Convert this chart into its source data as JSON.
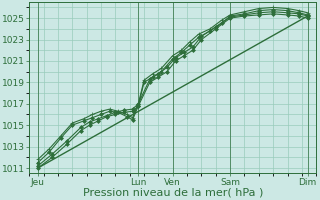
{
  "background_color": "#cce8e4",
  "grid_color": "#99ccbb",
  "line_color": "#2d6e3a",
  "marker_color": "#2d6e3a",
  "xlabel": "Pression niveau de la mer( hPa )",
  "xlabel_fontsize": 8,
  "tick_fontsize": 6.5,
  "ylim": [
    1010.5,
    1026.5
  ],
  "yticks": [
    1011,
    1013,
    1015,
    1017,
    1019,
    1021,
    1023,
    1025
  ],
  "xlim": [
    0,
    10
  ],
  "xtick_labels": [
    "Jeu",
    "Lun",
    "Ven",
    "Sam",
    "Dim"
  ],
  "xtick_positions": [
    0.3,
    3.8,
    5.0,
    7.0,
    9.7
  ],
  "vline_positions": [
    0.3,
    3.8,
    5.0,
    7.0,
    9.7
  ],
  "series": [
    {
      "x": [
        0.3,
        9.7
      ],
      "y": [
        1011.0,
        1025.2
      ],
      "marker": null,
      "markersize": 0,
      "linewidth": 1.0
    },
    {
      "x": [
        0.3,
        0.8,
        1.3,
        1.8,
        2.1,
        2.4,
        2.7,
        3.0,
        3.3,
        3.6,
        3.8,
        4.2,
        4.5,
        4.8,
        5.1,
        5.4,
        5.7,
        6.0,
        6.5,
        7.0,
        7.5,
        8.0,
        8.5,
        9.0,
        9.4,
        9.7
      ],
      "y": [
        1011.0,
        1012.0,
        1013.2,
        1014.5,
        1015.0,
        1015.4,
        1015.8,
        1016.0,
        1016.2,
        1016.3,
        1016.8,
        1019.0,
        1019.5,
        1020.0,
        1021.0,
        1021.5,
        1022.0,
        1023.0,
        1024.0,
        1025.0,
        1025.2,
        1025.3,
        1025.4,
        1025.3,
        1025.2,
        1025.0
      ],
      "marker": "D",
      "markersize": 2.0,
      "linewidth": 0.8
    },
    {
      "x": [
        0.3,
        0.8,
        1.3,
        1.8,
        2.1,
        2.4,
        2.7,
        3.0,
        3.3,
        3.6,
        3.8,
        4.2,
        4.5,
        4.8,
        5.1,
        5.4,
        5.7,
        6.0,
        6.5,
        7.0,
        7.5,
        8.0,
        8.5,
        9.0,
        9.4,
        9.7
      ],
      "y": [
        1011.2,
        1012.3,
        1013.5,
        1014.8,
        1015.3,
        1015.6,
        1015.9,
        1016.2,
        1016.4,
        1016.5,
        1017.0,
        1019.3,
        1019.8,
        1020.4,
        1021.3,
        1021.8,
        1022.3,
        1023.3,
        1024.2,
        1025.1,
        1025.3,
        1025.5,
        1025.6,
        1025.5,
        1025.4,
        1025.2
      ],
      "marker": "D",
      "markersize": 2.0,
      "linewidth": 0.8
    },
    {
      "x": [
        0.3,
        0.7,
        1.1,
        1.5,
        1.9,
        2.2,
        2.5,
        2.8,
        3.1,
        3.4,
        3.6,
        3.8,
        4.0,
        4.3,
        4.6,
        5.0,
        5.3,
        5.6,
        5.9,
        6.3,
        6.7,
        7.0,
        7.5,
        8.0,
        8.5,
        9.0,
        9.4,
        9.7
      ],
      "y": [
        1011.5,
        1012.5,
        1013.8,
        1015.0,
        1015.4,
        1015.7,
        1016.0,
        1016.3,
        1016.2,
        1015.8,
        1015.5,
        1016.8,
        1019.0,
        1019.5,
        1020.0,
        1021.2,
        1021.8,
        1022.5,
        1023.2,
        1023.8,
        1024.5,
        1025.2,
        1025.4,
        1025.7,
        1025.8,
        1025.7,
        1025.5,
        1025.3
      ],
      "marker": "D",
      "markersize": 2.0,
      "linewidth": 0.8
    },
    {
      "x": [
        0.3,
        0.7,
        1.1,
        1.5,
        1.9,
        2.2,
        2.5,
        2.8,
        3.1,
        3.4,
        3.6,
        3.8,
        4.0,
        4.3,
        4.6,
        5.0,
        5.3,
        5.6,
        5.9,
        6.3,
        6.7,
        7.0,
        7.5,
        8.0,
        8.5,
        9.0,
        9.4,
        9.7
      ],
      "y": [
        1011.8,
        1012.8,
        1014.0,
        1015.2,
        1015.6,
        1016.0,
        1016.3,
        1016.5,
        1016.3,
        1016.0,
        1015.7,
        1017.0,
        1019.2,
        1019.8,
        1020.3,
        1021.5,
        1022.0,
        1022.8,
        1023.5,
        1024.0,
        1024.8,
        1025.3,
        1025.6,
        1025.9,
        1026.0,
        1025.9,
        1025.7,
        1025.5
      ],
      "marker": "+",
      "markersize": 3.0,
      "linewidth": 0.8
    }
  ]
}
